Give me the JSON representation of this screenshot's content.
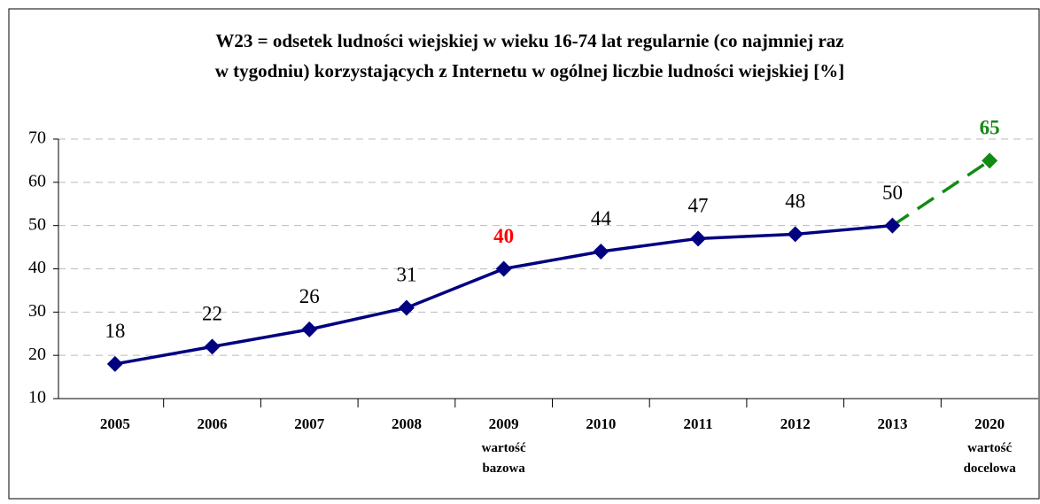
{
  "chart_data": {
    "type": "line",
    "title": [
      "W23 = odsetek ludności wiejskiej w wieku 16-74 lat regularnie (co najmniej raz",
      "w tygodniu) korzystających z Internetu w ogólnej liczbie ludności wiejskiej [%]"
    ],
    "categories": [
      "2005",
      "2006",
      "2007",
      "2008",
      "2009",
      "2010",
      "2011",
      "2012",
      "2013",
      "2020"
    ],
    "category_notes": [
      null,
      null,
      null,
      null,
      "wartość bazowa",
      null,
      null,
      null,
      null,
      "wartość docelowa"
    ],
    "series": [
      {
        "color": "#000080",
        "dashed": false,
        "values": [
          18,
          22,
          26,
          31,
          40,
          44,
          47,
          48,
          50,
          null
        ],
        "label_colors": [
          "#000000",
          "#000000",
          "#000000",
          "#000000",
          "#ff0000",
          "#000000",
          "#000000",
          "#000000",
          "#000000",
          null
        ]
      },
      {
        "color": "#138a13",
        "dashed": true,
        "values": [
          null,
          null,
          null,
          null,
          null,
          null,
          null,
          null,
          null,
          65
        ],
        "label_colors": [
          null,
          null,
          null,
          null,
          null,
          null,
          null,
          null,
          null,
          "#138a13"
        ]
      }
    ],
    "ylim": [
      10,
      70
    ],
    "yticks": [
      10,
      20,
      30,
      40,
      50,
      60,
      70
    ],
    "grid": true
  }
}
